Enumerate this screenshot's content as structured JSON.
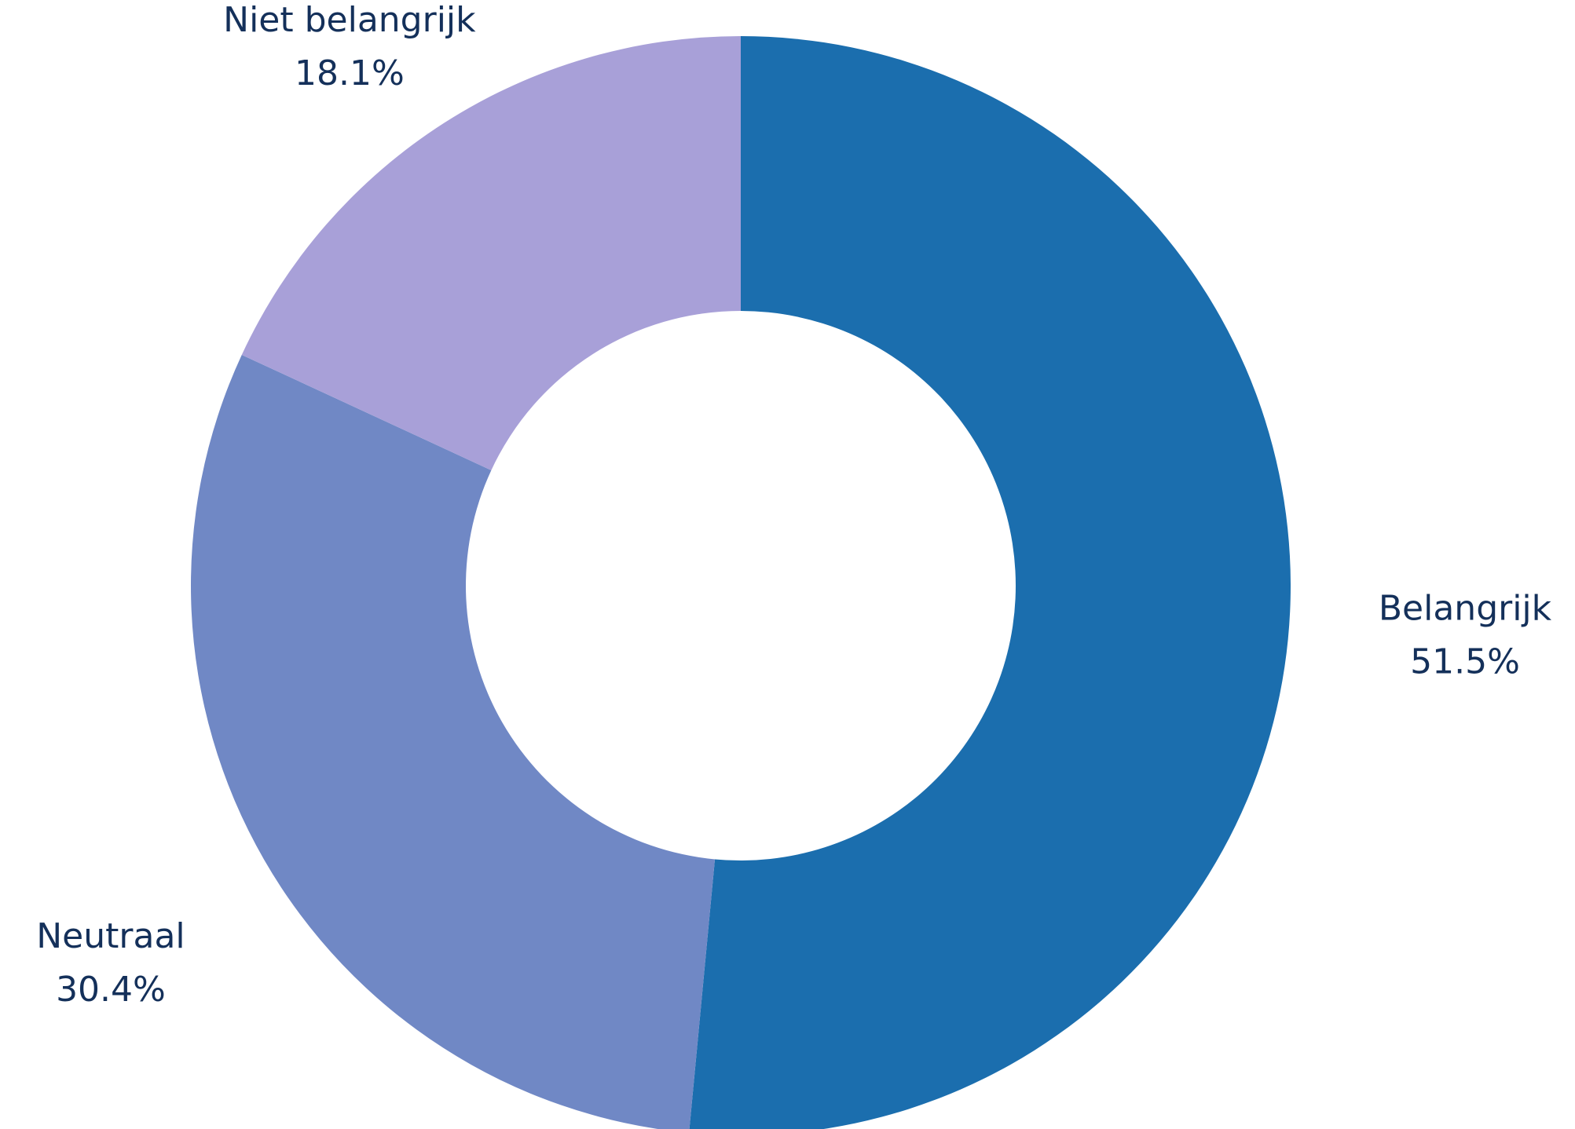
{
  "chart_data": {
    "type": "pie",
    "variant": "donut",
    "title": "",
    "legend": "none",
    "slices": [
      {
        "label": "Belangrijk",
        "value": 51.5,
        "value_label": "51.5%",
        "color": "#1b6eae"
      },
      {
        "label": "Neutraal",
        "value": 30.4,
        "value_label": "30.4%",
        "color": "#7088c5"
      },
      {
        "label": "Niet belangrijk",
        "value": 18.1,
        "value_label": "18.1%",
        "color": "#a8a0d8"
      }
    ]
  }
}
